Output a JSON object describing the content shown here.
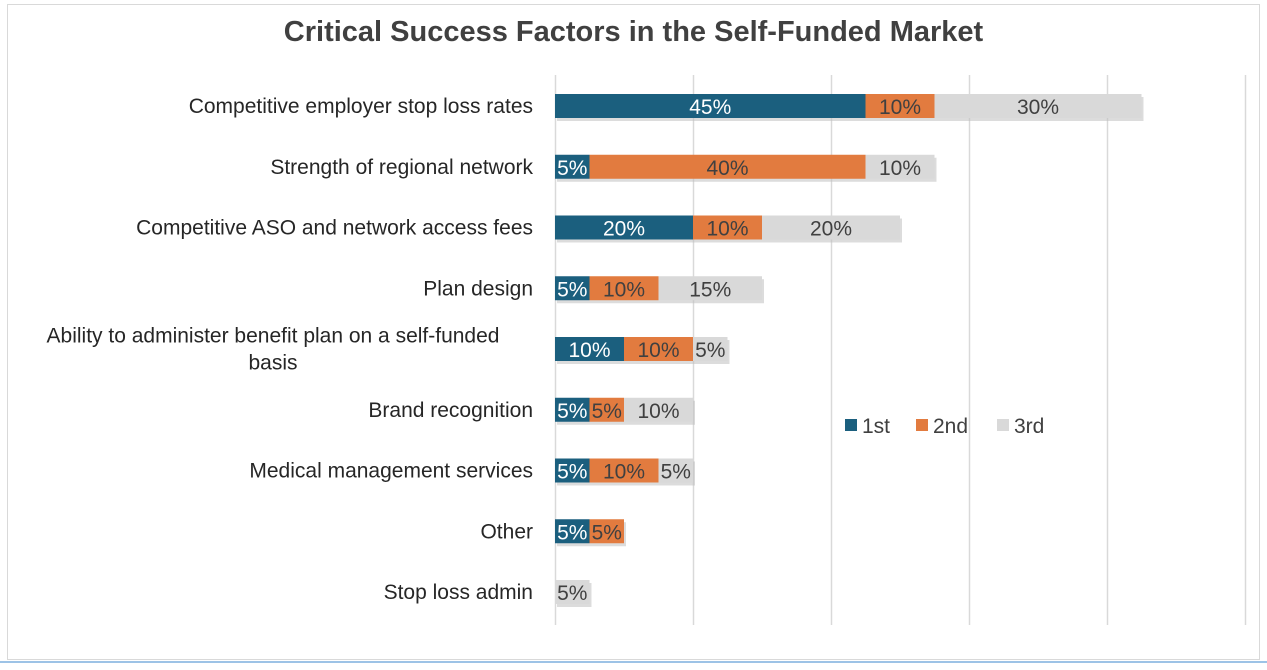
{
  "chart_data": {
    "type": "bar",
    "orientation": "horizontal",
    "stacked": true,
    "title": "Critical Success Factors in the Self-Funded Market",
    "xlabel": "",
    "ylabel": "",
    "xlim": [
      0,
      100
    ],
    "grid": true,
    "legend_position": "right-middle",
    "categories": [
      "Competitive employer stop loss rates",
      "Strength of regional network",
      "Competitive ASO and network access fees",
      "Plan design",
      "Ability to administer benefit plan on a self-funded basis",
      "Brand recognition",
      "Medical management services",
      "Other",
      "Stop loss admin"
    ],
    "series": [
      {
        "name": "1st",
        "color": "#1b5f7e",
        "label_color": "#ffffff",
        "values": [
          45,
          5,
          20,
          5,
          10,
          5,
          5,
          5,
          0
        ]
      },
      {
        "name": "2nd",
        "color": "#e27b3f",
        "label_color": "#404040",
        "values": [
          10,
          40,
          10,
          10,
          10,
          5,
          10,
          5,
          0
        ]
      },
      {
        "name": "3rd",
        "color": "#d9d9d9",
        "label_color": "#404040",
        "values": [
          30,
          10,
          20,
          15,
          5,
          10,
          5,
          0,
          5
        ]
      }
    ],
    "value_suffix": "%"
  }
}
